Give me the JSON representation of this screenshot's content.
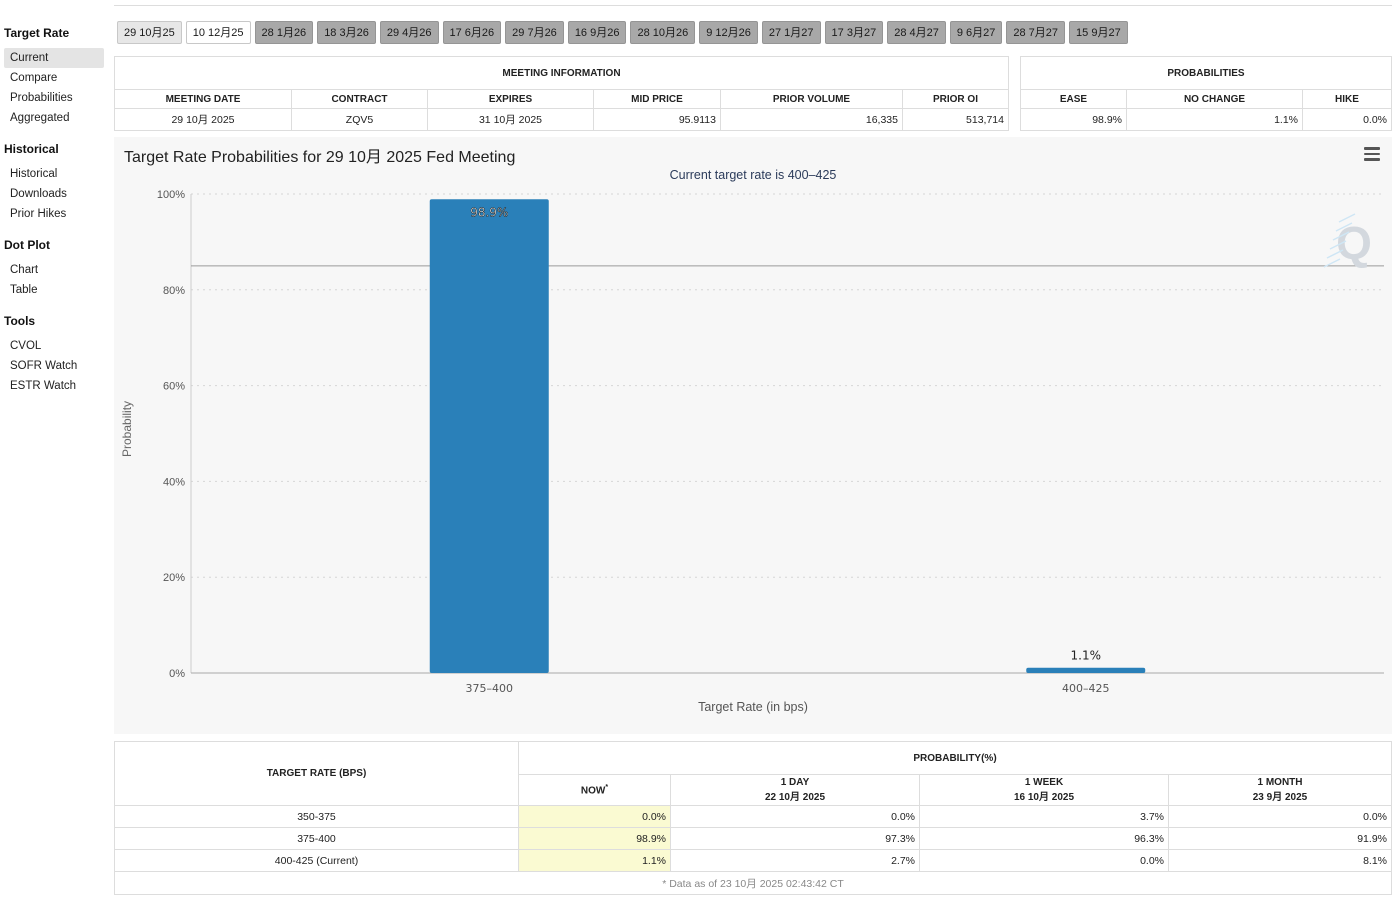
{
  "sidebar": {
    "sections": [
      {
        "title": "Target Rate",
        "items": [
          "Current",
          "Compare",
          "Probabilities",
          "Aggregated"
        ],
        "active": 0
      },
      {
        "title": "Historical",
        "items": [
          "Historical",
          "Downloads",
          "Prior Hikes"
        ],
        "active": -1
      },
      {
        "title": "Dot Plot",
        "items": [
          "Chart",
          "Table"
        ],
        "active": -1
      },
      {
        "title": "Tools",
        "items": [
          "CVOL",
          "SOFR Watch",
          "ESTR Watch"
        ],
        "active": -1
      }
    ]
  },
  "tabs": {
    "items": [
      "29 10月25",
      "10 12月25",
      "28 1月26",
      "18 3月26",
      "29 4月26",
      "17 6月26",
      "29 7月26",
      "16 9月26",
      "28 10月26",
      "9 12月26",
      "27 1月27",
      "17 3月27",
      "28 4月27",
      "9 6月27",
      "28 7月27",
      "15 9月27"
    ],
    "active_index": 0,
    "selected_index": 1
  },
  "meeting": {
    "title": "MEETING INFORMATION",
    "headers": [
      "MEETING DATE",
      "CONTRACT",
      "EXPIRES",
      "MID PRICE",
      "PRIOR VOLUME",
      "PRIOR OI"
    ],
    "values": [
      "29 10月 2025",
      "ZQV5",
      "31 10月 2025",
      "95.9113",
      "16,335",
      "513,714"
    ]
  },
  "probabilities": {
    "title": "PROBABILITIES",
    "headers": [
      "EASE",
      "NO CHANGE",
      "HIKE"
    ],
    "values": [
      "98.9%",
      "1.1%",
      "0.0%"
    ]
  },
  "chart": {
    "title": "Target Rate Probabilities for 29 10月 2025 Fed Meeting",
    "subtitle": "Current target rate is 400–425",
    "ylabel": "Probability",
    "xlabel": "Target Rate (in bps)",
    "bar_color": "#2a80b9"
  },
  "chart_data": {
    "type": "bar",
    "title": "Target Rate Probabilities for 29 10月 2025 Fed Meeting",
    "subtitle": "Current target rate is 400–425",
    "categories": [
      "375–400",
      "400–425"
    ],
    "values": [
      98.9,
      1.1
    ],
    "value_labels": [
      "98.9%",
      "1.1%"
    ],
    "xlabel": "Target Rate (in bps)",
    "ylabel": "Probability",
    "ylim": [
      0,
      100
    ],
    "yticks": [
      0,
      20,
      40,
      60,
      80,
      100
    ],
    "ytick_labels": [
      "0%",
      "20%",
      "40%",
      "60%",
      "80%",
      "100%"
    ],
    "reference_line": 85,
    "grid": true
  },
  "bottom_table": {
    "col0_header": "TARGET RATE (BPS)",
    "group_header": "PROBABILITY(%)",
    "sub_headers": [
      {
        "line1": "NOW",
        "line2": "",
        "marker": "*"
      },
      {
        "line1": "1 DAY",
        "line2": "22 10月 2025"
      },
      {
        "line1": "1 WEEK",
        "line2": "16 10月 2025"
      },
      {
        "line1": "1 MONTH",
        "line2": "23 9月 2025"
      }
    ],
    "rows": [
      {
        "rate": "350-375",
        "values": [
          "0.0%",
          "0.0%",
          "3.7%",
          "0.0%"
        ]
      },
      {
        "rate": "375-400",
        "values": [
          "98.9%",
          "97.3%",
          "96.3%",
          "91.9%"
        ]
      },
      {
        "rate": "400-425 (Current)",
        "values": [
          "1.1%",
          "2.7%",
          "0.0%",
          "8.1%"
        ]
      }
    ],
    "footnote": "* Data as of 23 10月 2025 02:43:42 CT"
  }
}
